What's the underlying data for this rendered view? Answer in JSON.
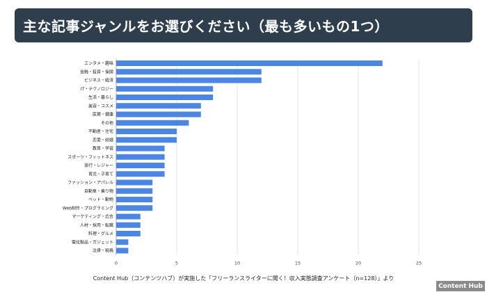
{
  "header": {
    "title": "主な記事ジャンルをお選びください（最も多いもの1つ）"
  },
  "footer": {
    "source": "Content Hub（コンテンツハブ）が実施した「フリーランスライターに聞く！収入実態調査アンケート（n=128）」より",
    "logo": "Content Hub"
  },
  "colors": {
    "bar": "#4a86e8",
    "title_bg": "#2f3e4c",
    "grid": "#e0e0e0"
  },
  "chart_data": {
    "type": "bar",
    "orientation": "horizontal",
    "title": "",
    "xlabel": "",
    "ylabel": "",
    "xlim": [
      0,
      25
    ],
    "xticks": [
      0,
      5,
      10,
      15,
      20,
      25
    ],
    "grid": true,
    "categories": [
      "エンタメ・趣味",
      "金融・投資・保険",
      "ビジネス・経済",
      "IT・テクノロジー",
      "生活・暮らし",
      "美容・コスメ",
      "医療・健康",
      "その他",
      "不動産・住宅",
      "恋愛・結婚",
      "教育・学習",
      "スポーツ・フィットネス",
      "旅行・レジャー",
      "育児・子育て",
      "ファッション・アパレル",
      "自動車・乗り物",
      "ペット・動物",
      "Web制作・プログラミング",
      "マーケティング・広告",
      "人材・採用・転職",
      "料理・グルメ",
      "電化製品・ガジェット",
      "法律・税務"
    ],
    "values": [
      22,
      12,
      12,
      8,
      8,
      7,
      7,
      6,
      5,
      5,
      4,
      4,
      4,
      4,
      3,
      3,
      3,
      3,
      2,
      2,
      2,
      1,
      1
    ]
  }
}
